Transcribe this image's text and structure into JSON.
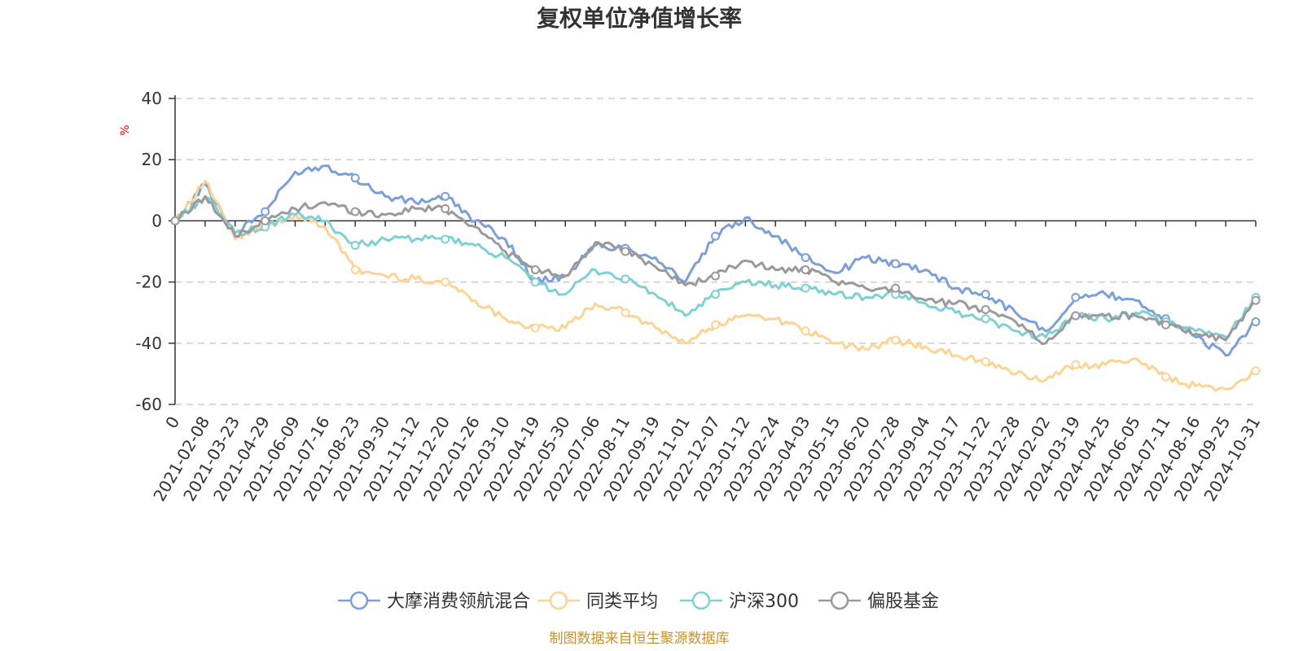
{
  "chart_data": {
    "type": "line",
    "title": "复权单位净值增长率",
    "ylabel": "%",
    "xlabel": "",
    "ylim": [
      -60,
      40
    ],
    "yticks": [
      40,
      20,
      0,
      -20,
      -40,
      -60
    ],
    "grid": true,
    "legend_position": "bottom",
    "x_ticks": [
      "0",
      "2021-02-08",
      "2021-03-23",
      "2021-04-29",
      "2021-06-09",
      "2021-07-16",
      "2021-08-23",
      "2021-09-30",
      "2021-11-12",
      "2021-12-20",
      "2022-01-26",
      "2022-03-10",
      "2022-04-19",
      "2022-05-30",
      "2022-07-06",
      "2022-08-11",
      "2022-09-19",
      "2022-11-01",
      "2022-12-07",
      "2023-01-12",
      "2023-02-24",
      "2023-04-03",
      "2023-05-15",
      "2023-06-20",
      "2023-07-28",
      "2023-09-04",
      "2023-10-17",
      "2023-11-22",
      "2023-12-28",
      "2024-02-02",
      "2024-03-19",
      "2024-04-25",
      "2024-06-05",
      "2024-07-11",
      "2024-08-16",
      "2024-09-25",
      "2024-10-31"
    ],
    "series": [
      {
        "name": "大摩消费领航混合",
        "color": "#7b9fd6",
        "values": [
          0,
          12,
          -4,
          3,
          16,
          18,
          14,
          8,
          6,
          8,
          0,
          -6,
          -20,
          -18,
          -8,
          -9,
          -12,
          -20,
          -5,
          1,
          -5,
          -12,
          -17,
          -12,
          -14,
          -16,
          -22,
          -24,
          -30,
          -36,
          -25,
          -24,
          -26,
          -32,
          -38,
          -44,
          -33
        ]
      },
      {
        "name": "同类平均",
        "color": "#fdd394",
        "values": [
          0,
          13,
          -6,
          -2,
          2,
          -2,
          -16,
          -18,
          -19,
          -20,
          -26,
          -32,
          -35,
          -35,
          -27,
          -30,
          -35,
          -40,
          -34,
          -31,
          -32,
          -36,
          -40,
          -42,
          -39,
          -41,
          -44,
          -46,
          -50,
          -52,
          -47,
          -47,
          -45,
          -51,
          -54,
          -55,
          -49
        ]
      },
      {
        "name": "沪深300",
        "color": "#7fd0d3",
        "values": [
          0,
          8,
          -4,
          -2,
          2,
          0,
          -8,
          -6,
          -6,
          -6,
          -8,
          -12,
          -20,
          -24,
          -16,
          -19,
          -24,
          -31,
          -24,
          -20,
          -21,
          -22,
          -24,
          -25,
          -24,
          -27,
          -30,
          -32,
          -36,
          -38,
          -31,
          -32,
          -30,
          -33,
          -36,
          -38,
          -25
        ]
      },
      {
        "name": "偏股基金",
        "color": "#9a9a9a",
        "values": [
          0,
          8,
          -5,
          0,
          4,
          6,
          3,
          2,
          4,
          4,
          -2,
          -10,
          -16,
          -18,
          -7,
          -10,
          -15,
          -21,
          -18,
          -13,
          -16,
          -16,
          -20,
          -22,
          -22,
          -26,
          -27,
          -29,
          -33,
          -40,
          -31,
          -31,
          -31,
          -34,
          -37,
          -39,
          -26
        ]
      }
    ]
  },
  "legend": {
    "items": [
      {
        "label": "大摩消费领航混合",
        "color": "#7b9fd6"
      },
      {
        "label": "同类平均",
        "color": "#fdd394"
      },
      {
        "label": "沪深300",
        "color": "#7fd0d3"
      },
      {
        "label": "偏股基金",
        "color": "#9a9a9a"
      }
    ]
  },
  "source_note": "制图数据来自恒生聚源数据库"
}
